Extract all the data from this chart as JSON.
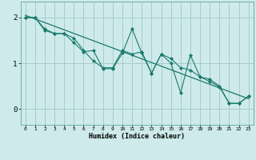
{
  "xlabel": "Humidex (Indice chaleur)",
  "background_color": "#ceeaea",
  "grid_color": "#a8cccc",
  "line_color": "#1a7a6e",
  "xlim": [
    -0.5,
    23.5
  ],
  "ylim": [
    -0.35,
    2.35
  ],
  "yticks": [
    0,
    1,
    2
  ],
  "xticks": [
    0,
    1,
    2,
    3,
    4,
    5,
    6,
    7,
    8,
    9,
    10,
    11,
    12,
    13,
    14,
    15,
    16,
    17,
    18,
    19,
    20,
    21,
    22,
    23
  ],
  "line1_x": [
    0,
    1,
    2,
    3,
    4,
    5,
    6,
    7,
    8,
    9,
    10,
    11,
    12,
    13,
    14,
    15,
    16,
    17,
    18,
    19,
    20,
    21,
    22,
    23
  ],
  "line1_y": [
    2.0,
    2.0,
    1.75,
    1.65,
    1.65,
    1.55,
    1.28,
    1.05,
    0.9,
    0.9,
    1.28,
    1.2,
    1.25,
    0.78,
    1.2,
    1.1,
    0.9,
    0.85,
    0.7,
    0.65,
    0.5,
    0.12,
    0.12,
    0.28
  ],
  "line2_x": [
    0,
    1,
    2,
    3,
    4,
    5,
    6,
    7,
    8,
    9,
    10,
    11,
    12,
    13,
    14,
    15,
    16,
    17,
    18,
    19,
    20,
    21,
    22,
    23
  ],
  "line2_y": [
    2.0,
    2.0,
    1.72,
    1.65,
    1.65,
    1.45,
    1.25,
    1.28,
    0.88,
    0.88,
    1.22,
    1.75,
    1.22,
    0.78,
    1.2,
    1.0,
    0.35,
    1.18,
    0.7,
    0.6,
    0.48,
    0.12,
    0.12,
    0.28
  ],
  "line3_x": [
    0,
    23
  ],
  "line3_y": [
    2.05,
    0.22
  ]
}
